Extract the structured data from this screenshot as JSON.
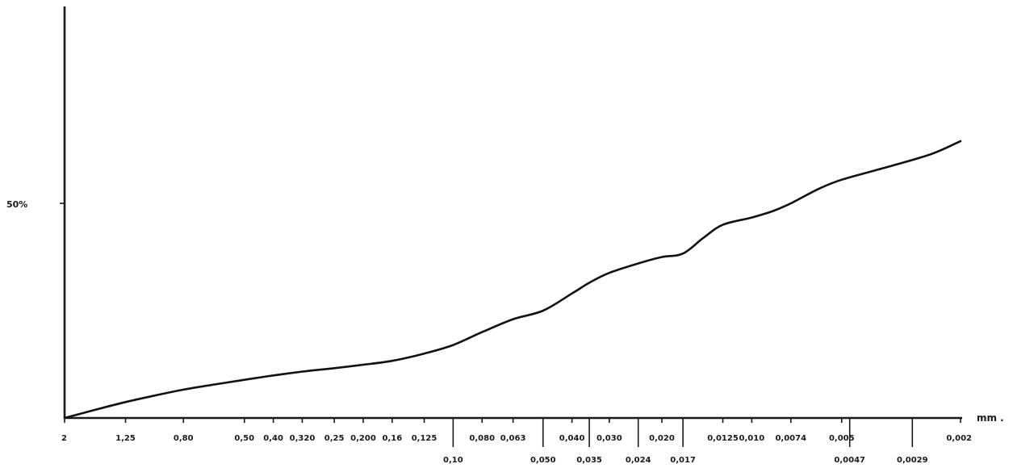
{
  "chart_data": {
    "type": "line",
    "title": "",
    "xlabel": "",
    "ylabel": "",
    "x_unit_label": "mm .",
    "y_tick_label": "50%",
    "y_tick_value": 50,
    "x_scale": "log (reversed: coarse to fine)",
    "grid": false,
    "ticks_upper": [
      {
        "x": 2,
        "label": "2"
      },
      {
        "x": 1.25,
        "label": "1,25"
      },
      {
        "x": 0.8,
        "label": "0,80"
      },
      {
        "x": 0.5,
        "label": "0,50"
      },
      {
        "x": 0.4,
        "label": "0,40"
      },
      {
        "x": 0.32,
        "label": "0,320"
      },
      {
        "x": 0.25,
        "label": "0,25"
      },
      {
        "x": 0.2,
        "label": "0,200"
      },
      {
        "x": 0.16,
        "label": "0,16"
      },
      {
        "x": 0.125,
        "label": "0,125"
      },
      {
        "x": 0.08,
        "label": "0,080"
      },
      {
        "x": 0.063,
        "label": "0,063"
      },
      {
        "x": 0.04,
        "label": "0,040"
      },
      {
        "x": 0.03,
        "label": "0,030"
      },
      {
        "x": 0.02,
        "label": "0,020"
      },
      {
        "x": 0.0125,
        "label": "0,0125"
      },
      {
        "x": 0.01,
        "label": "0,010"
      },
      {
        "x": 0.0074,
        "label": "0,0074"
      },
      {
        "x": 0.005,
        "label": "0,005"
      },
      {
        "x": 0.002,
        "label": "0,002"
      }
    ],
    "ticks_lower": [
      {
        "x": 0.1,
        "label": "0,10"
      },
      {
        "x": 0.05,
        "label": "0,050"
      },
      {
        "x": 0.035,
        "label": "0,035"
      },
      {
        "x": 0.024,
        "label": "0,024"
      },
      {
        "x": 0.017,
        "label": "0,017"
      },
      {
        "x": 0.0047,
        "label": "0,0047"
      },
      {
        "x": 0.0029,
        "label": "0,0029"
      }
    ],
    "series": [
      {
        "x": [
          2,
          1.6,
          1.25,
          1.0,
          0.8,
          0.63,
          0.5,
          0.4,
          0.32,
          0.25,
          0.2,
          0.16,
          0.125,
          0.1,
          0.08,
          0.063,
          0.05,
          0.04,
          0.035,
          0.03,
          0.024,
          0.02,
          0.017,
          0.0145,
          0.0125,
          0.01,
          0.0085,
          0.0074,
          0.006,
          0.005,
          0.0035,
          0.0025,
          0.002
        ],
        "y": [
          0,
          1.8,
          3.7,
          5.2,
          6.6,
          7.8,
          8.9,
          9.9,
          10.8,
          11.6,
          12.4,
          13.3,
          15,
          17,
          20,
          23,
          25,
          29,
          31.5,
          33.8,
          36,
          37.5,
          38.3,
          42,
          45,
          46.7,
          48.2,
          50,
          53.3,
          55.5,
          58.5,
          61.5,
          64.5
        ]
      }
    ]
  }
}
